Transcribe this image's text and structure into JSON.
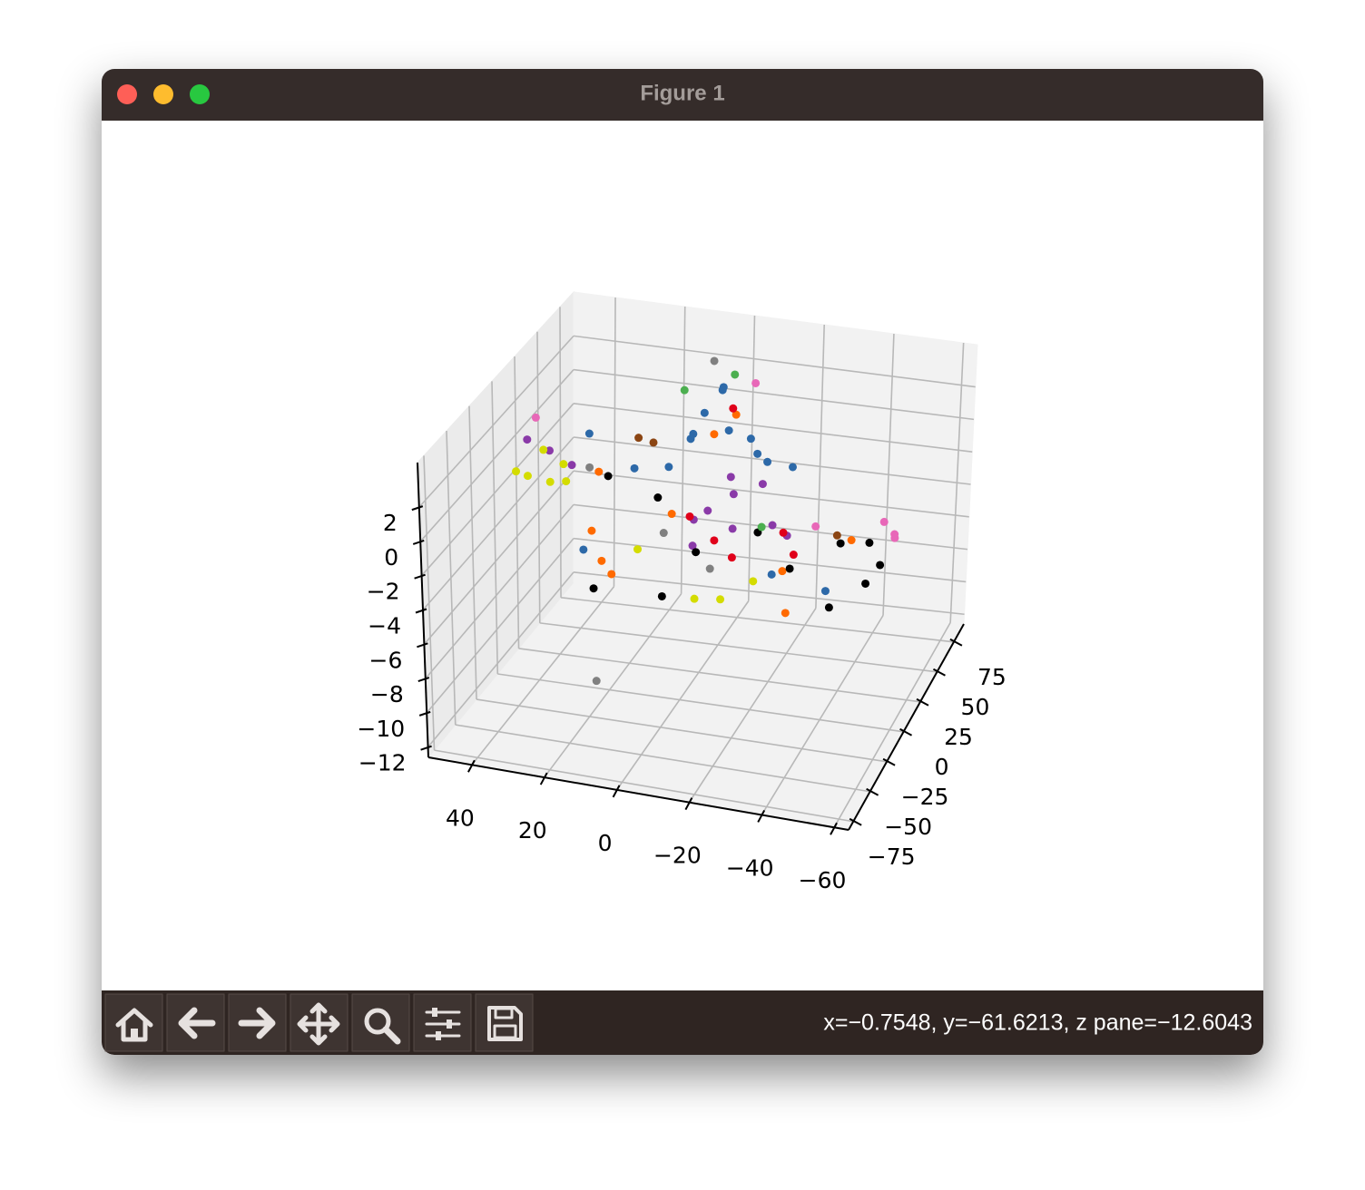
{
  "window": {
    "title": "Figure 1",
    "status": "x=−0.7548, y=−61.6213, z pane=−12.6043"
  },
  "chart_data": {
    "type": "scatter3d",
    "xlim": [
      52,
      -64
    ],
    "ylim": [
      -82,
      90
    ],
    "zlim": [
      -12.6,
      4.6
    ],
    "xticks": [
      40,
      20,
      0,
      {
        "value": -20,
        "label": "−20"
      },
      {
        "value": -40,
        "label": "−40"
      },
      {
        "value": -60,
        "label": "−60"
      }
    ],
    "yticks": [
      {
        "value": -75,
        "label": "−75"
      },
      {
        "value": -50,
        "label": "−50"
      },
      {
        "value": -25,
        "label": "−25"
      },
      0,
      25,
      50,
      75
    ],
    "zticks": [
      {
        "value": -12,
        "label": "−12"
      },
      {
        "value": -10,
        "label": "−10"
      },
      {
        "value": -8,
        "label": "−8"
      },
      {
        "value": -6,
        "label": "−6"
      },
      {
        "value": -4,
        "label": "−4"
      },
      {
        "value": -2,
        "label": "−2"
      },
      0,
      2
    ],
    "grid": true,
    "series": [
      {
        "color": "#2d69a8",
        "x": [
          10,
          5,
          2,
          0,
          -3,
          -5,
          -8,
          -12,
          -15,
          -20,
          -25,
          15,
          -30,
          20,
          -45,
          30
        ],
        "y": [
          30,
          35,
          25,
          30,
          40,
          30,
          25,
          35,
          30,
          20,
          30,
          10,
          -20,
          -30,
          -20,
          20
        ],
        "z": [
          -1,
          0.5,
          1.5,
          2.5,
          3.5,
          4,
          2,
          1,
          0.5,
          0.8,
          0,
          0,
          -3,
          -2.5,
          -3.5,
          1
        ]
      },
      {
        "color": "#8a3aa8",
        "x": [
          -10,
          -15,
          -18,
          -22,
          -5,
          -28,
          -12,
          45,
          40,
          35,
          -30,
          -8
        ],
        "y": [
          -10,
          0,
          -15,
          5,
          -5,
          -10,
          10,
          10,
          15,
          20,
          0,
          -20
        ],
        "z": [
          -0.5,
          0,
          -1,
          0.5,
          -1.5,
          -0.8,
          0.3,
          0.8,
          0,
          -1,
          -2,
          -2
        ]
      },
      {
        "color": "#d4dc00",
        "x": [
          40,
          38,
          35,
          42,
          30,
          33,
          -20,
          -15,
          5,
          -28
        ],
        "y": [
          -10,
          0,
          -5,
          -15,
          -10,
          5,
          -40,
          -50,
          -30,
          -35
        ],
        "z": [
          0,
          1,
          -0.5,
          0.5,
          1,
          -1,
          -3.5,
          -3,
          -2,
          -2.5
        ]
      },
      {
        "color": "#ff6a00",
        "x": [
          20,
          15,
          10,
          -10,
          -5,
          25,
          -35,
          -50,
          -40,
          0
        ],
        "y": [
          -20,
          -30,
          -40,
          25,
          20,
          10,
          -30,
          -10,
          -50,
          -10
        ],
        "z": [
          -2,
          -3,
          -3,
          3,
          2,
          -0.5,
          -2,
          -1,
          -3,
          -1
        ]
      },
      {
        "color": "#000000",
        "x": [
          -45,
          -55,
          -58,
          -50,
          -60,
          -25,
          -10,
          5,
          -5,
          15,
          -35,
          20
        ],
        "y": [
          0,
          -10,
          -30,
          -40,
          -20,
          -15,
          -25,
          -5,
          -45,
          -40,
          -20,
          0
        ],
        "z": [
          -2,
          -1,
          -2,
          -3,
          -1.5,
          -1,
          -2,
          -0.5,
          -3.5,
          -4,
          -2.5,
          0
        ]
      },
      {
        "color": "#e0001a",
        "x": [
          -8,
          -30,
          -35,
          -20,
          -5,
          -14
        ],
        "y": [
          30,
          -5,
          -15,
          -25,
          -10,
          -20
        ],
        "z": [
          3,
          -1.5,
          -2,
          -2,
          -1,
          -1.5
        ]
      },
      {
        "color": "#e868b8",
        "x": [
          -58,
          -62,
          -60,
          -40,
          -12,
          45
        ],
        "y": [
          -5,
          -10,
          0,
          -10,
          40,
          20
        ],
        "z": [
          0,
          -0.5,
          -1,
          -0.5,
          4,
          1.5
        ]
      },
      {
        "color": "#808080",
        "x": [
          2,
          0,
          -15,
          30,
          10
        ],
        "y": [
          50,
          -20,
          -30,
          20,
          -60
        ],
        "z": [
          4.3,
          -1.5,
          -2.5,
          -1,
          -8
        ]
      },
      {
        "color": "#4caf50",
        "x": [
          -5,
          8,
          -25
        ],
        "y": [
          45,
          40,
          -10
        ],
        "z": [
          4,
          3,
          -1
        ]
      },
      {
        "color": "#8b4513",
        "x": [
          15,
          -45,
          12
        ],
        "y": [
          15,
          -5,
          20
        ],
        "z": [
          1.5,
          -1.2,
          1
        ]
      }
    ]
  }
}
